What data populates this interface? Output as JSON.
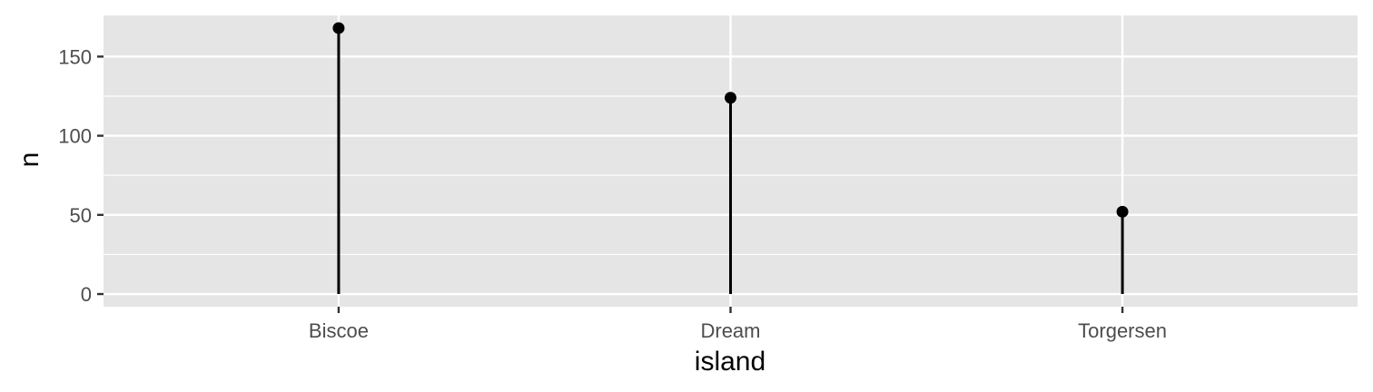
{
  "chart_data": {
    "type": "lollipop",
    "categories": [
      "Biscoe",
      "Dream",
      "Torgersen"
    ],
    "values": [
      168,
      124,
      52
    ],
    "xlabel": "island",
    "ylabel": "n",
    "ylim": [
      -8,
      176
    ],
    "yticks": [
      0,
      50,
      100,
      150
    ],
    "ytick_labels": [
      "0",
      "50",
      "100",
      "150"
    ],
    "grid": true,
    "legend": "none",
    "colors": {
      "panel": "#e5e5e5",
      "grid": "#ffffff",
      "mark": "#000000",
      "tick_text": "#4d4d4d",
      "tick_mark": "#333333"
    }
  }
}
